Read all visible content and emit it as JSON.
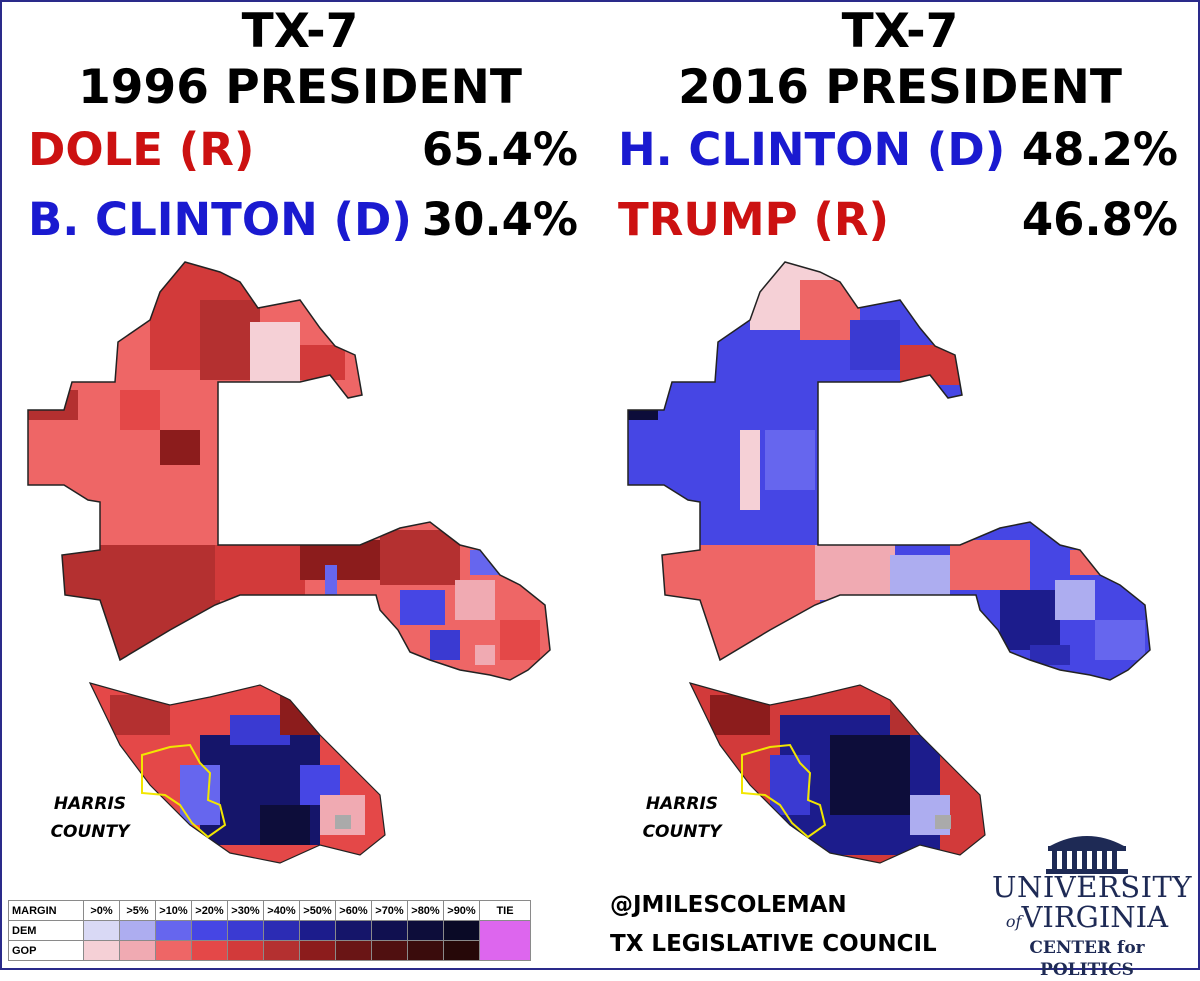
{
  "left": {
    "title_line1": "TX-7",
    "title_line2": "1996 PRESIDENT",
    "candidate1": "DOLE (R)",
    "pct1": "65.4%",
    "candidate2": "B. CLINTON (D)",
    "pct2": "30.4%",
    "county_label_1": "HARRIS",
    "county_label_2": "COUNTY"
  },
  "right": {
    "title_line1": "TX-7",
    "title_line2": "2016 PRESIDENT",
    "candidate1": "H. CLINTON (D)",
    "pct1": "48.2%",
    "candidate2": "TRUMP (R)",
    "pct2": "46.8%",
    "county_label_1": "HARRIS",
    "county_label_2": "COUNTY"
  },
  "colors": {
    "dem": [
      "#d9d9f5",
      "#adadf0",
      "#6666ee",
      "#4646e4",
      "#3a3ad2",
      "#2c2cb4",
      "#1c1c8c",
      "#15156a",
      "#101050",
      "#0d0d3a",
      "#0a0a26"
    ],
    "gop": [
      "#f5d0d6",
      "#f0aab2",
      "#ee6666",
      "#e44848",
      "#d23a3a",
      "#b43030",
      "#8c1c1c",
      "#6a1515",
      "#501010",
      "#3a0c0c",
      "#260808"
    ],
    "tie": "#dd66ee",
    "outline_highlight": "#f2e600"
  },
  "legend": {
    "margin_label": "MARGIN",
    "dem_label": "DEM",
    "gop_label": "GOP",
    "headers": [
      ">0%",
      ">5%",
      ">10%",
      ">20%",
      ">30%",
      ">40%",
      ">50%",
      ">60%",
      ">70%",
      ">80%",
      ">90%"
    ],
    "tie_label": "TIE"
  },
  "credits": {
    "author": "@JMILESCOLEMAN",
    "source": "TX LEGISLATIVE COUNCIL"
  },
  "logo": {
    "line1": "UNIVERSITY",
    "line2_small": "of",
    "line2": "VIRGINIA",
    "line3": "CENTER for POLITICS"
  }
}
